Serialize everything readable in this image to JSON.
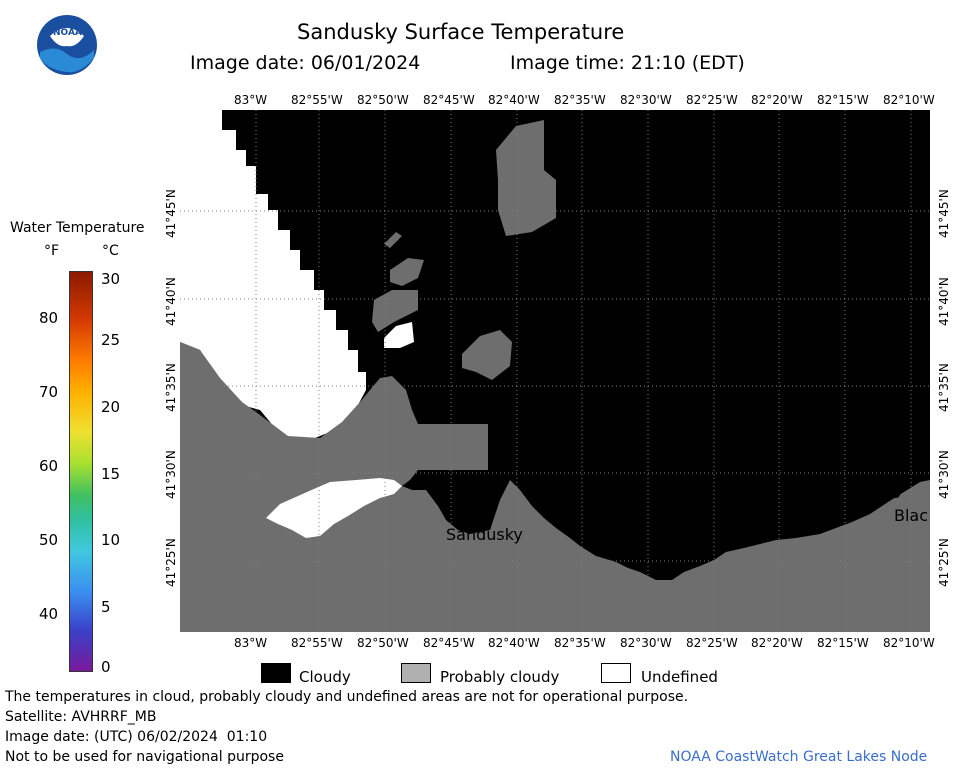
{
  "header": {
    "title": "Sandusky Surface Temperature",
    "image_date": "Image date: 06/01/2024",
    "image_time": "Image time: 21:10 (EDT)",
    "logo_text": "NOAA"
  },
  "map": {
    "lon_labels": [
      "83°W",
      "82°55'W",
      "82°50'W",
      "82°45'W",
      "82°40'W",
      "82°35'W",
      "82°30'W",
      "82°25'W",
      "82°20'W",
      "82°15'W",
      "82°10'W"
    ],
    "lat_labels": [
      "41°45'N",
      "41°40'N",
      "41°35'N",
      "41°30'N",
      "41°25'N"
    ],
    "place_labels": {
      "sandusky": "Sandusky",
      "bla": "Blac"
    },
    "colors": {
      "cloudy": "#000000",
      "probably_cloudy": "#6e6e6e",
      "undefined": "#ffffff"
    }
  },
  "colorbar": {
    "title": "Water Temperature",
    "unit_f": "°F",
    "unit_c": "°C",
    "f_ticks": [
      "80",
      "70",
      "60",
      "50",
      "40"
    ],
    "c_ticks": [
      "30",
      "25",
      "20",
      "15",
      "10",
      "5",
      "0"
    ]
  },
  "legend": {
    "cloudy": "Cloudy",
    "probably_cloudy": "Probably cloudy",
    "undefined": "Undefined"
  },
  "footer": {
    "disclaimer": "The temperatures in cloud, probably cloudy and undefined areas are not for operational purpose.",
    "satellite": "Satellite: AVHRRF_MB",
    "utc_date": "Image date: (UTC) 06/02/2024  01:10",
    "nav_warning": "Not to be used for navigational purpose",
    "credit": "NOAA CoastWatch Great Lakes Node"
  }
}
